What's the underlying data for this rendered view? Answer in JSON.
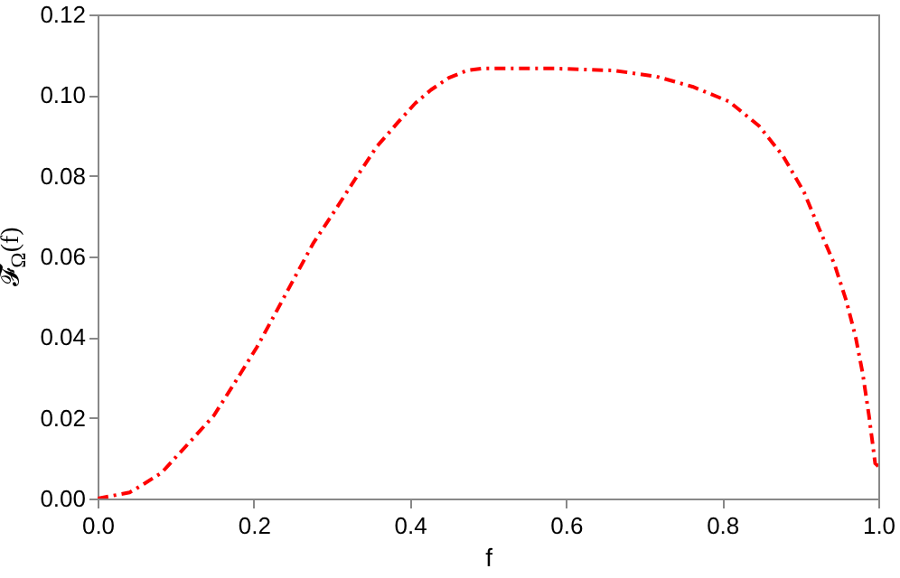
{
  "chart_data": {
    "type": "line",
    "xlabel": "f",
    "ylabel": "𝓕$_{Ω}$(f)",
    "xlim": [
      0,
      1
    ],
    "ylim": [
      0,
      0.12
    ],
    "xticks": [
      {
        "value": 0,
        "label": "0.0"
      },
      {
        "value": 0.2,
        "label": "0.2"
      },
      {
        "value": 0.4,
        "label": "0.4"
      },
      {
        "value": 0.6,
        "label": "0.6"
      },
      {
        "value": 0.8,
        "label": "0.8"
      },
      {
        "value": 1,
        "label": "1.0"
      }
    ],
    "yticks": [
      {
        "value": 0,
        "label": "0.00"
      },
      {
        "value": 0.02,
        "label": "0.02"
      },
      {
        "value": 0.04,
        "label": "0.04"
      },
      {
        "value": 0.06,
        "label": "0.06"
      },
      {
        "value": 0.08,
        "label": "0.08"
      },
      {
        "value": 0.1,
        "label": "0.10"
      },
      {
        "value": 0.12,
        "label": "0.12"
      }
    ],
    "grid": false,
    "line_style": "dashed",
    "series": [
      {
        "color": "#ff0000",
        "x": [
          0,
          0.041,
          0.06,
          0.082,
          0.1,
          0.119,
          0.149,
          0.176,
          0.204,
          0.228,
          0.253,
          0.276,
          0.303,
          0.33,
          0.357,
          0.384,
          0.407,
          0.427,
          0.45,
          0.473,
          0.492,
          0.585,
          0.662,
          0.716,
          0.762,
          0.809,
          0.847,
          0.878,
          0.905,
          0.924,
          0.944,
          0.959,
          0.971,
          0.98,
          0.988,
          0.996,
          1
        ],
        "values": [
          0,
          0.0015,
          0.0037,
          0.0064,
          0.0102,
          0.0142,
          0.0206,
          0.0288,
          0.0375,
          0.046,
          0.055,
          0.0632,
          0.0711,
          0.0792,
          0.0871,
          0.0931,
          0.098,
          0.1013,
          0.1043,
          0.1061,
          0.1066,
          0.1066,
          0.1061,
          0.1046,
          0.1021,
          0.0984,
          0.0924,
          0.0849,
          0.0759,
          0.067,
          0.058,
          0.049,
          0.04,
          0.031,
          0.0206,
          0.0087,
          0.008
        ]
      }
    ]
  }
}
